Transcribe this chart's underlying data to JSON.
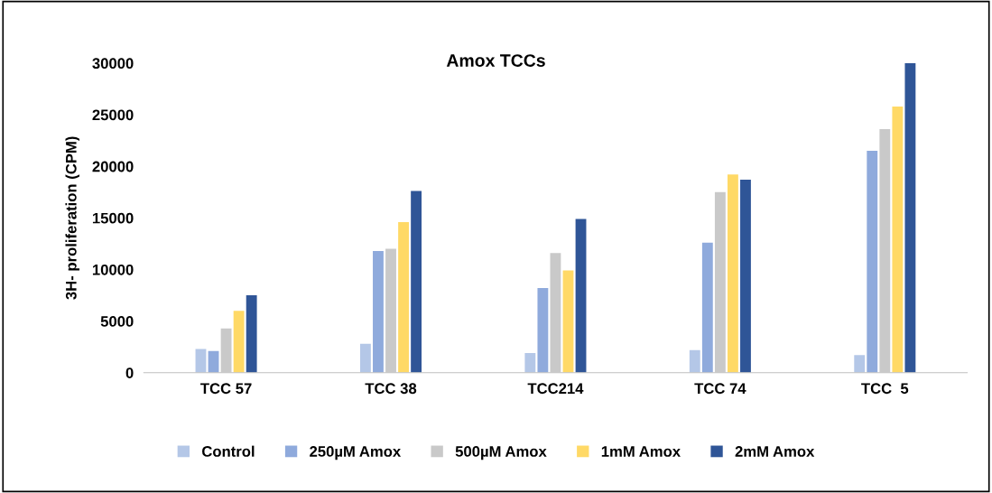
{
  "chart_data": {
    "type": "bar",
    "title": "Amox TCCs",
    "ylabel": "3H- proliferation (CPM)",
    "categories": [
      "TCC 57",
      "TCC 38",
      "TCC214",
      "TCC 74",
      "TCC  5"
    ],
    "series": [
      {
        "name": "Control",
        "color": "#b4c7e7",
        "values": [
          2300,
          2800,
          1900,
          2200,
          1700
        ]
      },
      {
        "name": "250µM Amox",
        "color": "#8faadc",
        "values": [
          2100,
          11800,
          8200,
          12600,
          21500
        ]
      },
      {
        "name": "500µM Amox",
        "color": "#c9c9c9",
        "values": [
          4300,
          12000,
          11600,
          17500,
          23600
        ]
      },
      {
        "name": "1mM Amox",
        "color": "#ffd966",
        "values": [
          6000,
          14600,
          9900,
          19200,
          25800
        ]
      },
      {
        "name": "2mM Amox",
        "color": "#2f5597",
        "values": [
          7500,
          17600,
          14900,
          18700,
          30000
        ]
      }
    ],
    "ylim": [
      0,
      30000
    ],
    "yticks": [
      0,
      5000,
      10000,
      15000,
      20000,
      25000,
      30000
    ],
    "grid": false,
    "legend": "bottom"
  }
}
